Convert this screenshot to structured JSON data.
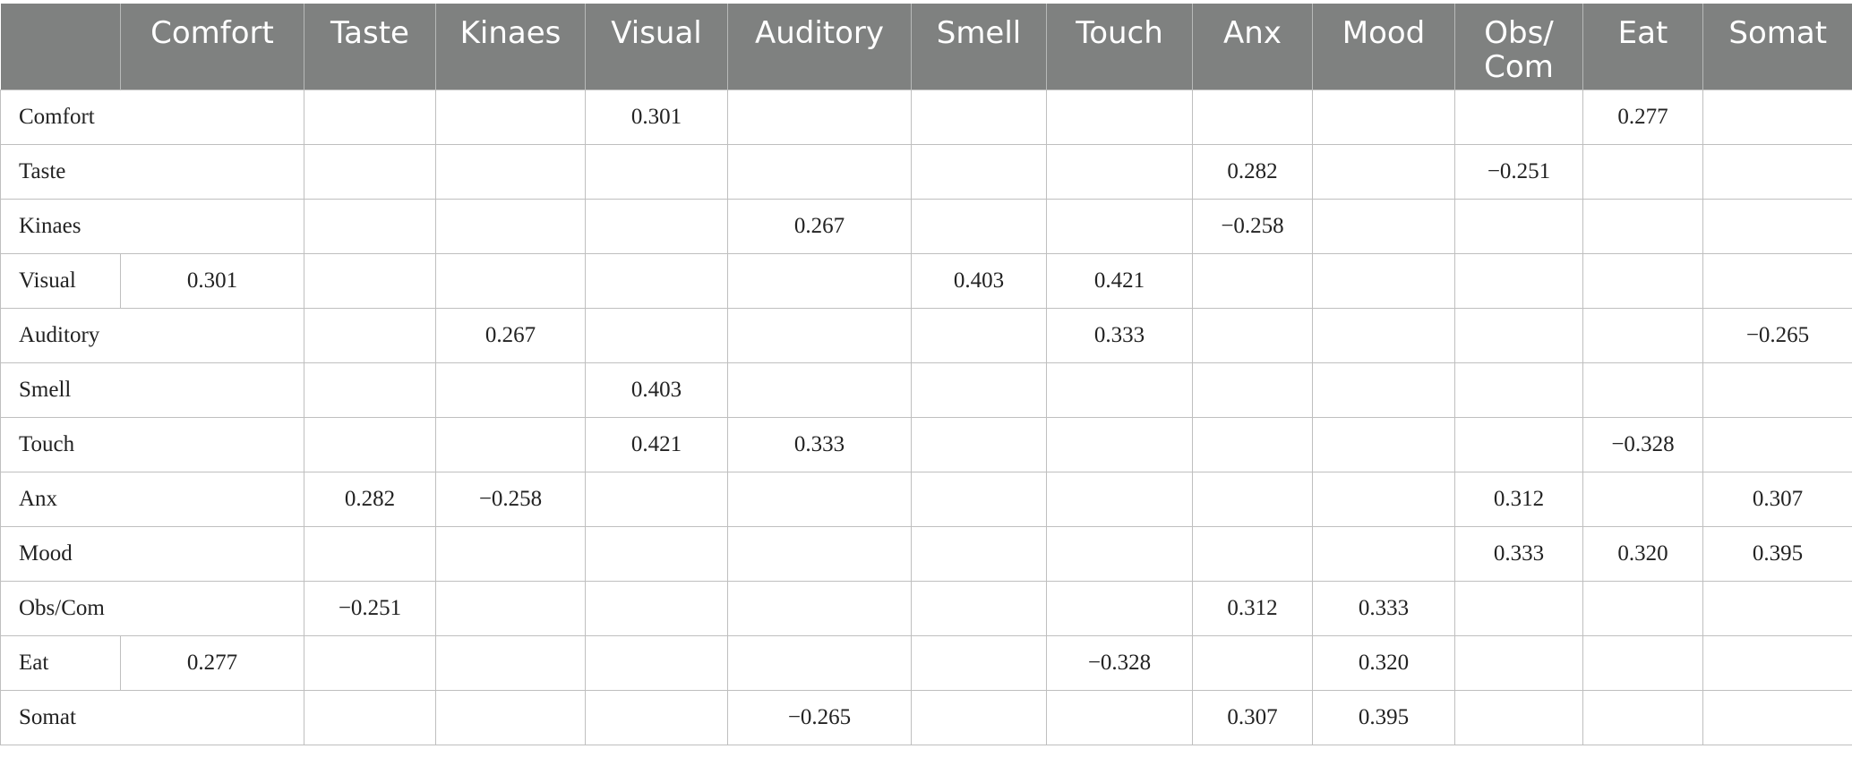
{
  "table": {
    "columns": [
      "",
      "Comfort",
      "Taste",
      "Kinaes",
      "Visual",
      "Auditory",
      "Smell",
      "Touch",
      "Anx",
      "Mood",
      "Obs/\nCom",
      "Eat",
      "Somat"
    ],
    "rows": [
      {
        "label": "Comfort",
        "cells": [
          "",
          "",
          "",
          "0.301",
          "",
          "",
          "",
          "",
          "",
          "",
          "0.277",
          ""
        ]
      },
      {
        "label": "Taste",
        "cells": [
          "",
          "",
          "",
          "",
          "",
          "",
          "",
          "0.282",
          "",
          "−0.251",
          "",
          ""
        ]
      },
      {
        "label": "Kinaes",
        "cells": [
          "",
          "",
          "",
          "",
          "0.267",
          "",
          "",
          "−0.258",
          "",
          "",
          "",
          ""
        ]
      },
      {
        "label": "Visual",
        "cells": [
          "0.301",
          "",
          "",
          "",
          "",
          "0.403",
          "0.421",
          "",
          "",
          "",
          "",
          ""
        ]
      },
      {
        "label": "Auditory",
        "cells": [
          "",
          "",
          "0.267",
          "",
          "",
          "",
          "0.333",
          "",
          "",
          "",
          "",
          "−0.265"
        ]
      },
      {
        "label": "Smell",
        "cells": [
          "",
          "",
          "",
          "0.403",
          "",
          "",
          "",
          "",
          "",
          "",
          "",
          ""
        ]
      },
      {
        "label": "Touch",
        "cells": [
          "",
          "",
          "",
          "0.421",
          "0.333",
          "",
          "",
          "",
          "",
          "",
          "−0.328",
          ""
        ]
      },
      {
        "label": "Anx",
        "cells": [
          "",
          "0.282",
          "−0.258",
          "",
          "",
          "",
          "",
          "",
          "",
          "0.312",
          "",
          "0.307"
        ]
      },
      {
        "label": "Mood",
        "cells": [
          "",
          "",
          "",
          "",
          "",
          "",
          "",
          "",
          "",
          "0.333",
          "0.320",
          "0.395"
        ]
      },
      {
        "label": "Obs/Com",
        "cells": [
          "",
          "−0.251",
          "",
          "",
          "",
          "",
          "",
          "0.312",
          "0.333",
          "",
          "",
          ""
        ]
      },
      {
        "label": "Eat",
        "cells": [
          "0.277",
          "",
          "",
          "",
          "",
          "",
          "−0.328",
          "",
          "0.320",
          "",
          "",
          ""
        ]
      },
      {
        "label": "Somat",
        "cells": [
          "",
          "",
          "",
          "",
          "−0.265",
          "",
          "",
          "0.307",
          "0.395",
          "",
          "",
          ""
        ]
      }
    ]
  },
  "colors": {
    "header_bg": "#7f8180",
    "header_text": "#ffffff",
    "grid_line": "#bfbfbf",
    "body_text": "#222222"
  }
}
